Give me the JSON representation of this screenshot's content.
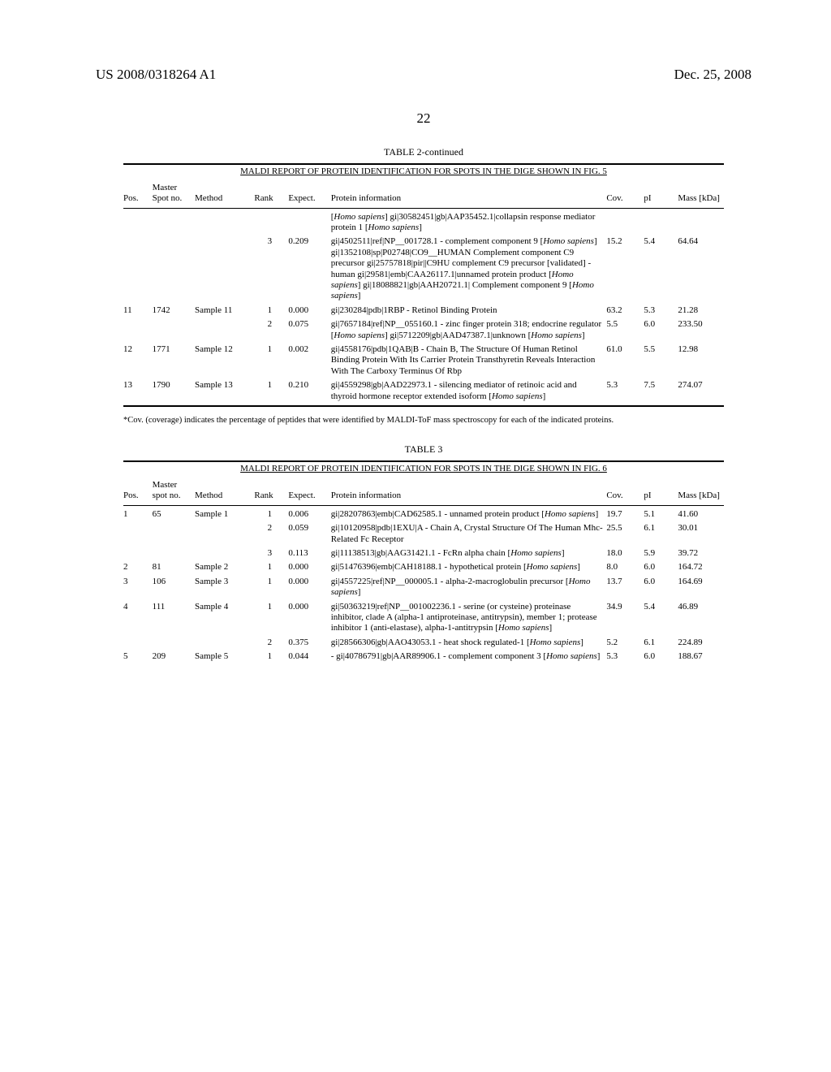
{
  "header": {
    "doc_number": "US 2008/0318264 A1",
    "date": "Dec. 25, 2008",
    "page_number": "22"
  },
  "table2": {
    "title": "TABLE 2-continued",
    "subtitle": "MALDI REPORT OF PROTEIN IDENTIFICATION FOR SPOTS IN THE DIGE SHOWN IN FIG. 5",
    "columns": {
      "pos": "Pos.",
      "spot": "Master Spot no.",
      "method": "Method",
      "rank": "Rank",
      "expect": "Expect.",
      "info": "Protein information",
      "cov": "Cov.",
      "pi": "pI",
      "mass": "Mass [kDa]"
    },
    "rows": [
      {
        "pos": "",
        "spot": "",
        "method": "",
        "rank": "",
        "expect": "",
        "info": "[Homo sapiens] gi|30582451|gb|AAP35452.1|collapsin response mediator protein 1 [Homo sapiens]",
        "cov": "",
        "pi": "",
        "mass": ""
      },
      {
        "pos": "",
        "spot": "",
        "method": "",
        "rank": "3",
        "expect": "0.209",
        "info": "gi|4502511|ref|NP__001728.1 - complement component 9 [Homo sapiens] gi|1352108|sp|P02748|CO9__HUMAN Complement component C9 precursor gi|25757818|pir||C9HU complement C9 precursor [validated] - human gi|29581|emb|CAA26117.1|unnamed protein product [Homo sapiens] gi|18088821|gb|AAH20721.1| Complement component 9 [Homo sapiens]",
        "cov": "15.2",
        "pi": "5.4",
        "mass": "64.64"
      },
      {
        "pos": "11",
        "spot": "1742",
        "method": "Sample 11",
        "rank": "1",
        "expect": "0.000",
        "info": "gi|230284|pdb|1RBP - Retinol Binding Protein",
        "cov": "63.2",
        "pi": "5.3",
        "mass": "21.28"
      },
      {
        "pos": "",
        "spot": "",
        "method": "",
        "rank": "2",
        "expect": "0.075",
        "info": "gi|7657184|ref|NP__055160.1 - zinc finger protein 318; endocrine regulator [Homo sapiens] gi|5712209|gb|AAD47387.1|unknown [Homo sapiens]",
        "cov": "5.5",
        "pi": "6.0",
        "mass": "233.50"
      },
      {
        "pos": "12",
        "spot": "1771",
        "method": "Sample 12",
        "rank": "1",
        "expect": "0.002",
        "info": "gi|4558176|pdb|1QAB|B - Chain B, The Structure Of Human Retinol Binding Protein With Its Carrier Protein Transthyretin Reveals Interaction With The Carboxy Terminus Of Rbp",
        "cov": "61.0",
        "pi": "5.5",
        "mass": "12.98"
      },
      {
        "pos": "13",
        "spot": "1790",
        "method": "Sample 13",
        "rank": "1",
        "expect": "0.210",
        "info": "gi|4559298|gb|AAD22973.1 - silencing mediator of retinoic acid and thyroid hormone receptor extended isoform [Homo sapiens]",
        "cov": "5.3",
        "pi": "7.5",
        "mass": "274.07"
      }
    ],
    "footnote": "*Cov. (coverage) indicates the percentage of peptides that were identified by MALDI-ToF mass spectroscopy for each of the indicated proteins."
  },
  "table3": {
    "title": "TABLE 3",
    "subtitle": "MALDI REPORT OF PROTEIN IDENTIFICATION FOR SPOTS IN THE DIGE SHOWN IN FIG. 6",
    "columns": {
      "pos": "Pos.",
      "spot": "Master spot no.",
      "method": "Method",
      "rank": "Rank",
      "expect": "Expect.",
      "info": "Protein information",
      "cov": "Cov.",
      "pi": "pI",
      "mass": "Mass [kDa]"
    },
    "rows": [
      {
        "pos": "1",
        "spot": "65",
        "method": "Sample 1",
        "rank": "1",
        "expect": "0.006",
        "info": "gi|28207863|emb|CAD62585.1 - unnamed protein product [Homo sapiens]",
        "cov": "19.7",
        "pi": "5.1",
        "mass": "41.60"
      },
      {
        "pos": "",
        "spot": "",
        "method": "",
        "rank": "2",
        "expect": "0.059",
        "info": "gi|10120958|pdb|1EXU|A - Chain A, Crystal Structure Of The Human Mhc-Related Fc Receptor",
        "cov": "25.5",
        "pi": "6.1",
        "mass": "30.01"
      },
      {
        "pos": "",
        "spot": "",
        "method": "",
        "rank": "3",
        "expect": "0.113",
        "info": "gi|11138513|gb|AAG31421.1 - FcRn alpha chain [Homo sapiens]",
        "cov": "18.0",
        "pi": "5.9",
        "mass": "39.72"
      },
      {
        "pos": "2",
        "spot": "81",
        "method": "Sample 2",
        "rank": "1",
        "expect": "0.000",
        "info": "gi|51476396|emb|CAH18188.1 - hypothetical protein [Homo sapiens]",
        "cov": "8.0",
        "pi": "6.0",
        "mass": "164.72"
      },
      {
        "pos": "3",
        "spot": "106",
        "method": "Sample 3",
        "rank": "1",
        "expect": "0.000",
        "info": "gi|4557225|ref|NP__000005.1 - alpha-2-macroglobulin precursor [Homo sapiens]",
        "cov": "13.7",
        "pi": "6.0",
        "mass": "164.69"
      },
      {
        "pos": "4",
        "spot": "111",
        "method": "Sample 4",
        "rank": "1",
        "expect": "0.000",
        "info": "gi|50363219|ref|NP__001002236.1 - serine (or cysteine) proteinase inhibitor, clade A (alpha-1 antiproteinase, antitrypsin), member 1; protease inhibitor 1 (anti-elastase), alpha-1-antitrypsin [Homo sapiens]",
        "cov": "34.9",
        "pi": "5.4",
        "mass": "46.89"
      },
      {
        "pos": "",
        "spot": "",
        "method": "",
        "rank": "2",
        "expect": "0.375",
        "info": "gi|28566306|gb|AAO43053.1 - heat shock regulated-1 [Homo sapiens]",
        "cov": "5.2",
        "pi": "6.1",
        "mass": "224.89"
      },
      {
        "pos": "5",
        "spot": "209",
        "method": "Sample 5",
        "rank": "1",
        "expect": "0.044",
        "info": "- gi|40786791|gb|AAR89906.1 - complement component 3 [Homo sapiens]",
        "cov": "5.3",
        "pi": "6.0",
        "mass": "188.67"
      }
    ]
  }
}
